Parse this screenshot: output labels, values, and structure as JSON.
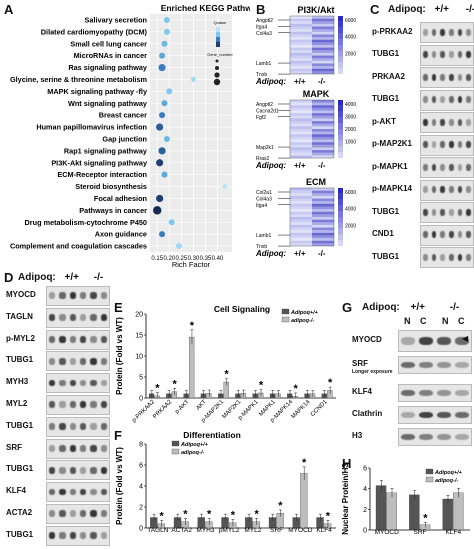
{
  "panels": {
    "A": {
      "label": "A",
      "title": "Enriched KEGG Pathway",
      "xlabel": "Rich Factor",
      "legend_qvalue_title": "Qvalue",
      "legend_gene_title": "Gene_number",
      "chart_data": {
        "type": "scatter",
        "xlim": [
          0.12,
          0.46
        ],
        "xticks": [
          0.15,
          0.2,
          0.25,
          0.3,
          0.35,
          0.4
        ],
        "tick_labels": [
          "0.15",
          "0.20",
          "0.25",
          "0.30",
          "0.35",
          "0.40"
        ],
        "categories": [
          "Salivary secretion",
          "Dilated cardiomyopathy (DCM)",
          "Small cell lung cancer",
          "MicroRNAs in cancer",
          "Ras signaling pathway",
          "Glycine, serine & threonine metabolism",
          "MAPK signaling pathway -fly",
          "Wnt signaling pathway",
          "Breast cancer",
          "Human papillomavirus infection",
          "Gap junction",
          "Rap1 signaling pathway",
          "PI3K-Akt signaling pathway",
          "ECM-Receptor interaction",
          "Steroid biosynthesis",
          "Focal adhesion",
          "Pathways in cancer",
          "Drug metabolism-cytochrome P450",
          "Axon guidance",
          "Complement and coagulation cascades"
        ],
        "x": [
          0.19,
          0.19,
          0.18,
          0.17,
          0.17,
          0.3,
          0.2,
          0.18,
          0.17,
          0.16,
          0.19,
          0.17,
          0.16,
          0.18,
          0.43,
          0.16,
          0.15,
          0.21,
          0.17,
          0.24
        ],
        "size": [
          3,
          3,
          3,
          3,
          4,
          2,
          3,
          3,
          3,
          4,
          3,
          4,
          4,
          3,
          2,
          4,
          5,
          3,
          3,
          3
        ],
        "color": [
          "#7ec8f0",
          "#7ec8f0",
          "#6cb8e4",
          "#5aa9da",
          "#3a7bbf",
          "#9fd8f5",
          "#7ec8f0",
          "#5aa9da",
          "#3a7bbf",
          "#2c5e9c",
          "#6cb8e4",
          "#2c5e9c",
          "#1e3f73",
          "#5aa9da",
          "#b8e4fa",
          "#1e3f73",
          "#142a52",
          "#7ec8f0",
          "#3a7bbf",
          "#9fd8f5"
        ]
      }
    },
    "B": {
      "label": "B",
      "heatmaps": [
        {
          "title": "PI3K/Akt",
          "genes": [
            "Angptl2",
            "Itga4",
            "Col4a3",
            "Lamb1",
            "Tnxb"
          ],
          "scale": [
            "6000",
            "4000",
            "2000"
          ],
          "rows": 22
        },
        {
          "title": "MAPK",
          "genes": [
            "Angptl2",
            "Cacna2d1",
            "Fgf2",
            "Map2k1",
            "Rras2"
          ],
          "scale": [
            "4000",
            "3000",
            "2000",
            "1000"
          ],
          "rows": 22
        },
        {
          "title": "ECM",
          "genes": [
            "Col2a1",
            "Col4a3",
            "Itga4",
            "Lamb1",
            "Tnxb"
          ],
          "scale": [
            "6000",
            "4000",
            "2000"
          ],
          "rows": 22
        }
      ],
      "genotype_label": "Adipoq:",
      "wt": "+/+",
      "ko": "-/-"
    },
    "C": {
      "label": "C",
      "genotype_label": "Adipoq:",
      "wt": "+/+",
      "ko": "-/-",
      "blots": [
        "p-PRKAA2",
        "TUBG1",
        "PRKAA2",
        "TUBG1",
        "p-AKT",
        "p-MAP2K1",
        "p-MAPK1",
        "p-MAPK14",
        "TUBG1",
        "CND1",
        "TUBG1"
      ]
    },
    "D": {
      "label": "D",
      "genotype_label": "Adipoq:",
      "wt": "+/+",
      "ko": "-/-",
      "blots": [
        "MYOCD",
        "TAGLN",
        "p-MYL2",
        "TUBG1",
        "MYH3",
        "MYL2",
        "TUBG1",
        "SRF",
        "TUBG1",
        "KLF4",
        "ACTA2",
        "TUBG1"
      ]
    },
    "E": {
      "label": "E",
      "chart_data": {
        "type": "bar",
        "title": "Cell Signaling",
        "ylabel": "Protein (Fold vs WT)",
        "ylim": [
          0,
          20
        ],
        "yticks": [
          0,
          5,
          10,
          15,
          20
        ],
        "categories": [
          "p-PRKAA2",
          "PRKAA2",
          "p-AKT",
          "AKT",
          "p-MAP2K1",
          "MAP2K1",
          "p-MAPK1",
          "MAPK1",
          "p-MAPK14",
          "MAPK14",
          "CCND1"
        ],
        "series": [
          {
            "name": "Adipoq+/+",
            "values": [
              1,
              1,
              1,
              1,
              1,
              1,
              1,
              1,
              1,
              1,
              1
            ],
            "color": "#555555"
          },
          {
            "name": "adipoq-/-",
            "values": [
              0.5,
              1.5,
              14.5,
              1.1,
              3.8,
              1.1,
              1.2,
              1.0,
              0.4,
              1.0,
              1.8
            ],
            "color": "#bdbdbd"
          }
        ],
        "stars": [
          true,
          true,
          true,
          false,
          true,
          false,
          true,
          false,
          true,
          false,
          true
        ]
      }
    },
    "F": {
      "label": "F",
      "chart_data": {
        "type": "bar",
        "title": "Differentiation",
        "ylabel": "Protein (Fold vs WT)",
        "ylim": [
          0,
          8
        ],
        "yticks": [
          0,
          2,
          4,
          6,
          8
        ],
        "categories": [
          "TAGLN",
          "ACTA2",
          "MYH3",
          "pMYL2",
          "MYL2",
          "SRF",
          "MYOCD",
          "KLF4"
        ],
        "series": [
          {
            "name": "Adipoq+/+",
            "values": [
              1,
              1,
              1,
              1,
              1,
              1,
              1,
              1
            ],
            "color": "#555555"
          },
          {
            "name": "adipoq-/-",
            "values": [
              0.4,
              0.6,
              0.6,
              0.5,
              0.6,
              1.4,
              5.2,
              0.4
            ],
            "color": "#bdbdbd"
          }
        ],
        "stars": [
          true,
          true,
          true,
          true,
          true,
          true,
          true,
          true
        ]
      }
    },
    "G": {
      "label": "G",
      "genotype_label": "Adipoq:",
      "wt": "+/+",
      "ko": "-/-",
      "cols": [
        "N",
        "C",
        "N",
        "C"
      ],
      "blots": [
        "MYOCD",
        "SRF",
        "Longer exposure",
        "KLF4",
        "Clathrin",
        "H3"
      ]
    },
    "H": {
      "label": "H",
      "chart_data": {
        "type": "bar",
        "ylabel": "Nuclear Protein/H3",
        "ylim": [
          0,
          6
        ],
        "yticks": [
          0,
          2,
          4,
          6
        ],
        "categories": [
          "MYOCD",
          "SRF",
          "KLF4"
        ],
        "series": [
          {
            "name": "Adipoq+/+",
            "values": [
              4.3,
              3.4,
              3.0
            ],
            "color": "#555555"
          },
          {
            "name": "adipoq-/-",
            "values": [
              3.6,
              0.5,
              3.6
            ],
            "color": "#bdbdbd"
          }
        ],
        "stars": [
          false,
          true,
          false
        ]
      }
    }
  }
}
